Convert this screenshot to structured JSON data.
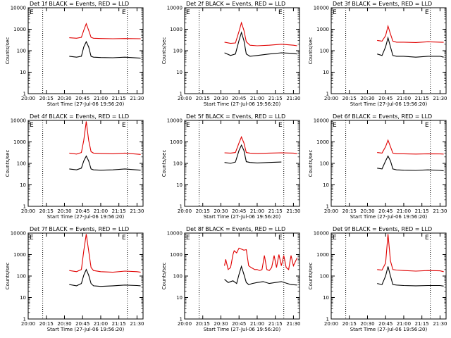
{
  "chart_data": [
    {
      "type": "line",
      "title": "Det 1f BLACK = Events, RED = LLD",
      "ylabel": "Counts/sec",
      "xlabel": "Start Time (27-Jul-06 19:56:20)",
      "ylim": [
        1,
        10000
      ],
      "yscale": "log",
      "xlim": [
        "20:00",
        "21:35"
      ],
      "x_ticks": [
        "20:00",
        "20:15",
        "20:30",
        "20:45",
        "21:00",
        "21:15",
        "21:30"
      ],
      "y_ticks": [
        "1",
        "10",
        "100",
        "1000",
        "10000"
      ],
      "vlines": [
        "20:12",
        "21:22"
      ],
      "corner_marks": [
        "E",
        "E"
      ],
      "series": [
        {
          "color": "#e00000",
          "x": [
            "20:34",
            "20:40",
            "20:44",
            "20:46",
            "20:48",
            "20:50",
            "20:52",
            "20:54",
            "21:00",
            "21:10",
            "21:20",
            "21:33"
          ],
          "y": [
            400,
            380,
            420,
            900,
            1800,
            900,
            420,
            380,
            370,
            360,
            370,
            360
          ]
        },
        {
          "color": "#000000",
          "x": [
            "20:34",
            "20:40",
            "20:44",
            "20:46",
            "20:48",
            "20:50",
            "20:52",
            "20:54",
            "21:00",
            "21:10",
            "21:20",
            "21:33"
          ],
          "y": [
            55,
            50,
            55,
            150,
            260,
            150,
            55,
            50,
            48,
            47,
            50,
            45
          ]
        }
      ]
    },
    {
      "type": "line",
      "title": "Det 2f BLACK = Events, RED = LLD",
      "ylabel": "Counts/sec",
      "xlabel": "Start Time (27-Jul-06 19:56:20)",
      "ylim": [
        1,
        10000
      ],
      "yscale": "log",
      "xlim": [
        "20:00",
        "21:35"
      ],
      "x_ticks": [
        "20:00",
        "20:15",
        "20:30",
        "20:45",
        "21:00",
        "21:15",
        "21:30"
      ],
      "y_ticks": [
        "1",
        "10",
        "100",
        "1000",
        "10000"
      ],
      "vlines": [
        "20:12",
        "21:22"
      ],
      "corner_marks": [
        "E",
        "E"
      ],
      "series": [
        {
          "color": "#e00000",
          "x": [
            "20:33",
            "20:38",
            "20:42",
            "20:45",
            "20:47",
            "20:49",
            "20:51",
            "20:54",
            "21:00",
            "21:10",
            "21:20",
            "21:30",
            "21:33"
          ],
          "y": [
            250,
            220,
            230,
            800,
            2000,
            900,
            260,
            180,
            170,
            180,
            200,
            180,
            170
          ]
        },
        {
          "color": "#000000",
          "x": [
            "20:33",
            "20:38",
            "20:42",
            "20:45",
            "20:47",
            "20:49",
            "20:51",
            "20:54",
            "21:00",
            "21:10",
            "21:20",
            "21:30",
            "21:33"
          ],
          "y": [
            80,
            60,
            70,
            300,
            700,
            300,
            70,
            55,
            60,
            70,
            80,
            75,
            70
          ]
        }
      ]
    },
    {
      "type": "line",
      "title": "Det 3f BLACK = Events, RED = LLD",
      "ylabel": "Counts/sec",
      "xlabel": "Start Time (27-Jul-06 19:56:20)",
      "ylim": [
        1,
        10000
      ],
      "yscale": "log",
      "xlim": [
        "20:00",
        "21:35"
      ],
      "x_ticks": [
        "20:00",
        "20:15",
        "20:30",
        "20:45",
        "21:00",
        "21:15",
        "21:30"
      ],
      "y_ticks": [
        "1",
        "10",
        "100",
        "1000",
        "10000"
      ],
      "vlines": [
        "20:12",
        "21:22"
      ],
      "corner_marks": [
        "E",
        "E"
      ],
      "series": [
        {
          "color": "#e00000",
          "x": [
            "20:38",
            "20:42",
            "20:45",
            "20:47",
            "20:49",
            "20:51",
            "20:54",
            "21:00",
            "21:10",
            "21:20",
            "21:30",
            "21:33"
          ],
          "y": [
            300,
            280,
            500,
            1400,
            600,
            280,
            250,
            250,
            240,
            260,
            250,
            245
          ]
        },
        {
          "color": "#000000",
          "x": [
            "20:38",
            "20:42",
            "20:45",
            "20:47",
            "20:49",
            "20:51",
            "20:54",
            "21:00",
            "21:10",
            "21:20",
            "21:30",
            "21:33"
          ],
          "y": [
            70,
            60,
            150,
            400,
            150,
            60,
            55,
            55,
            50,
            55,
            55,
            50
          ]
        }
      ]
    },
    {
      "type": "line",
      "title": "Det 4f BLACK = Events, RED = LLD",
      "ylabel": "Counts/sec",
      "xlabel": "Start Time (27-Jul-06 19:56:20)",
      "ylim": [
        1,
        10000
      ],
      "yscale": "log",
      "xlim": [
        "20:00",
        "21:35"
      ],
      "x_ticks": [
        "20:00",
        "20:15",
        "20:30",
        "20:45",
        "21:00",
        "21:15",
        "21:30"
      ],
      "y_ticks": [
        "1",
        "10",
        "100",
        "1000",
        "10000"
      ],
      "vlines": [
        "20:12",
        "21:22"
      ],
      "corner_marks": [
        "E",
        "E"
      ],
      "series": [
        {
          "color": "#e00000",
          "x": [
            "20:34",
            "20:40",
            "20:44",
            "20:46",
            "20:48",
            "20:50",
            "20:52",
            "20:54",
            "21:00",
            "21:10",
            "21:20",
            "21:33"
          ],
          "y": [
            300,
            270,
            320,
            1200,
            9000,
            1200,
            350,
            300,
            290,
            280,
            300,
            260
          ]
        },
        {
          "color": "#000000",
          "x": [
            "20:34",
            "20:40",
            "20:44",
            "20:46",
            "20:48",
            "20:50",
            "20:52",
            "20:54",
            "21:00",
            "21:10",
            "21:20",
            "21:33"
          ],
          "y": [
            55,
            50,
            60,
            130,
            220,
            130,
            55,
            50,
            48,
            50,
            55,
            48
          ]
        }
      ]
    },
    {
      "type": "line",
      "title": "Det 5f BLACK = Events, RED = LLD",
      "ylabel": "Counts/sec",
      "xlabel": "Start Time (27-Jul-06 19:56:20)",
      "ylim": [
        1,
        10000
      ],
      "yscale": "log",
      "xlim": [
        "20:00",
        "21:35"
      ],
      "x_ticks": [
        "20:00",
        "20:15",
        "20:30",
        "20:45",
        "21:00",
        "21:15",
        "21:30"
      ],
      "y_ticks": [
        "1",
        "10",
        "100",
        "1000",
        "10000"
      ],
      "vlines": [
        "20:12",
        "21:22"
      ],
      "corner_marks": [
        "E",
        "E"
      ],
      "series": [
        {
          "color": "#e00000",
          "x": [
            "20:33",
            "20:38",
            "20:42",
            "20:45",
            "20:47",
            "20:49",
            "20:51",
            "20:54",
            "21:00",
            "21:10",
            "21:20",
            "21:30",
            "21:33"
          ],
          "y": [
            310,
            300,
            320,
            900,
            1700,
            900,
            320,
            300,
            290,
            300,
            310,
            300,
            280
          ]
        },
        {
          "color": "#000000",
          "x": [
            "20:33",
            "20:38",
            "20:42",
            "20:45",
            "20:47",
            "20:49",
            "20:51",
            "20:54",
            "21:00",
            "21:10",
            "21:20"
          ],
          "y": [
            110,
            100,
            115,
            400,
            700,
            400,
            120,
            110,
            105,
            110,
            115
          ]
        }
      ]
    },
    {
      "type": "line",
      "title": "Det 6f BLACK = Events, RED = LLD",
      "ylabel": "Counts/sec",
      "xlabel": "Start Time (27-Jul-06 19:56:20)",
      "ylim": [
        1,
        10000
      ],
      "yscale": "log",
      "xlim": [
        "20:00",
        "21:35"
      ],
      "x_ticks": [
        "20:00",
        "20:15",
        "20:30",
        "20:45",
        "21:00",
        "21:15",
        "21:30"
      ],
      "y_ticks": [
        "1",
        "10",
        "100",
        "1000",
        "10000"
      ],
      "vlines": [
        "20:12",
        "21:22"
      ],
      "corner_marks": [
        "E",
        "E"
      ],
      "series": [
        {
          "color": "#e00000",
          "x": [
            "20:38",
            "20:42",
            "20:45",
            "20:47",
            "20:49",
            "20:51",
            "20:54",
            "21:00",
            "21:10",
            "21:20",
            "21:30",
            "21:33"
          ],
          "y": [
            320,
            300,
            600,
            1200,
            600,
            300,
            280,
            280,
            270,
            280,
            275,
            270
          ]
        },
        {
          "color": "#000000",
          "x": [
            "20:38",
            "20:42",
            "20:45",
            "20:47",
            "20:49",
            "20:51",
            "20:54",
            "21:00",
            "21:10",
            "21:20",
            "21:30",
            "21:33"
          ],
          "y": [
            60,
            55,
            130,
            220,
            130,
            55,
            50,
            48,
            47,
            50,
            47,
            45
          ]
        }
      ]
    },
    {
      "type": "line",
      "title": "Det 7f BLACK = Events, RED = LLD",
      "ylabel": "Counts/sec",
      "xlabel": "Start Time (27-Jul-06 19:56:20)",
      "ylim": [
        1,
        10000
      ],
      "yscale": "log",
      "xlim": [
        "20:00",
        "21:35"
      ],
      "x_ticks": [
        "20:00",
        "20:15",
        "20:30",
        "20:45",
        "21:00",
        "21:15",
        "21:30"
      ],
      "y_ticks": [
        "1",
        "10",
        "100",
        "1000",
        "10000"
      ],
      "vlines": [
        "20:12",
        "21:22"
      ],
      "corner_marks": [
        "E",
        "E"
      ],
      "series": [
        {
          "color": "#e00000",
          "x": [
            "20:34",
            "20:40",
            "20:44",
            "20:46",
            "20:48",
            "20:50",
            "20:52",
            "20:54",
            "21:00",
            "21:10",
            "21:20",
            "21:30",
            "21:33"
          ],
          "y": [
            180,
            160,
            200,
            1500,
            9000,
            1500,
            250,
            180,
            160,
            150,
            170,
            160,
            150
          ]
        },
        {
          "color": "#000000",
          "x": [
            "20:34",
            "20:40",
            "20:44",
            "20:46",
            "20:48",
            "20:50",
            "20:52",
            "20:54",
            "21:00",
            "21:10",
            "21:20",
            "21:30",
            "21:33"
          ],
          "y": [
            40,
            35,
            45,
            110,
            200,
            110,
            45,
            35,
            33,
            35,
            38,
            36,
            35
          ]
        }
      ]
    },
    {
      "type": "line",
      "title": "Det 8f BLACK = Events, RED = LLD",
      "ylabel": "Counts/sec",
      "xlabel": "Start Time (27-Jul-06 19:56:20)",
      "ylim": [
        1,
        10000
      ],
      "yscale": "log",
      "xlim": [
        "20:00",
        "21:35"
      ],
      "x_ticks": [
        "20:00",
        "20:15",
        "20:30",
        "20:45",
        "21:00",
        "21:15",
        "21:30"
      ],
      "y_ticks": [
        "1",
        "10",
        "100",
        "1000",
        "10000"
      ],
      "vlines": [
        "20:12",
        "21:22"
      ],
      "corner_marks": [
        "E",
        "E"
      ],
      "series": [
        {
          "color": "#e00000",
          "x": [
            "20:33",
            "20:34",
            "20:36",
            "20:38",
            "20:40",
            "20:41",
            "20:43",
            "20:45",
            "20:47",
            "20:49",
            "20:51",
            "20:53",
            "20:55",
            "20:58",
            "21:00",
            "21:02",
            "21:04",
            "21:06",
            "21:08",
            "21:10",
            "21:12",
            "21:14",
            "21:16",
            "21:18",
            "21:20",
            "21:22",
            "21:24",
            "21:26",
            "21:28",
            "21:30",
            "21:33"
          ],
          "y": [
            300,
            600,
            200,
            250,
            1000,
            1500,
            1200,
            2000,
            1800,
            1600,
            1700,
            300,
            250,
            200,
            200,
            180,
            200,
            900,
            200,
            180,
            250,
            900,
            250,
            1000,
            300,
            900,
            250,
            200,
            900,
            300,
            700
          ]
        },
        {
          "color": "#000000",
          "x": [
            "20:33",
            "20:36",
            "20:40",
            "20:43",
            "20:45",
            "20:47",
            "20:49",
            "20:51",
            "20:53",
            "20:56",
            "21:00",
            "21:05",
            "21:10",
            "21:15",
            "21:20",
            "21:25",
            "21:28",
            "21:33"
          ],
          "y": [
            70,
            50,
            60,
            45,
            120,
            280,
            120,
            50,
            40,
            45,
            50,
            55,
            45,
            50,
            55,
            45,
            40,
            38
          ]
        }
      ]
    },
    {
      "type": "line",
      "title": "Det 9f BLACK = Events, RED = LLD",
      "ylabel": "Counts/sec",
      "xlabel": "Start Time (27-Jul-06 19:56:20)",
      "ylim": [
        1,
        10000
      ],
      "yscale": "log",
      "xlim": [
        "20:00",
        "21:35"
      ],
      "x_ticks": [
        "20:00",
        "20:15",
        "20:30",
        "20:45",
        "21:00",
        "21:15",
        "21:30"
      ],
      "y_ticks": [
        "1",
        "10",
        "100",
        "1000",
        "10000"
      ],
      "vlines": [
        "20:12",
        "21:22"
      ],
      "corner_marks": [
        "E",
        "E"
      ],
      "series": [
        {
          "color": "#e00000",
          "x": [
            "20:38",
            "20:42",
            "20:45",
            "20:47",
            "20:49",
            "20:51",
            "20:54",
            "21:00",
            "21:10",
            "21:20",
            "21:30",
            "21:33"
          ],
          "y": [
            200,
            190,
            400,
            9000,
            500,
            200,
            190,
            180,
            170,
            180,
            175,
            160
          ]
        },
        {
          "color": "#000000",
          "x": [
            "20:38",
            "20:42",
            "20:45",
            "20:47",
            "20:49",
            "20:51",
            "20:54",
            "21:00",
            "21:10",
            "21:20",
            "21:30",
            "21:33"
          ],
          "y": [
            45,
            40,
            100,
            280,
            100,
            40,
            38,
            36,
            35,
            36,
            36,
            34
          ]
        }
      ]
    }
  ]
}
